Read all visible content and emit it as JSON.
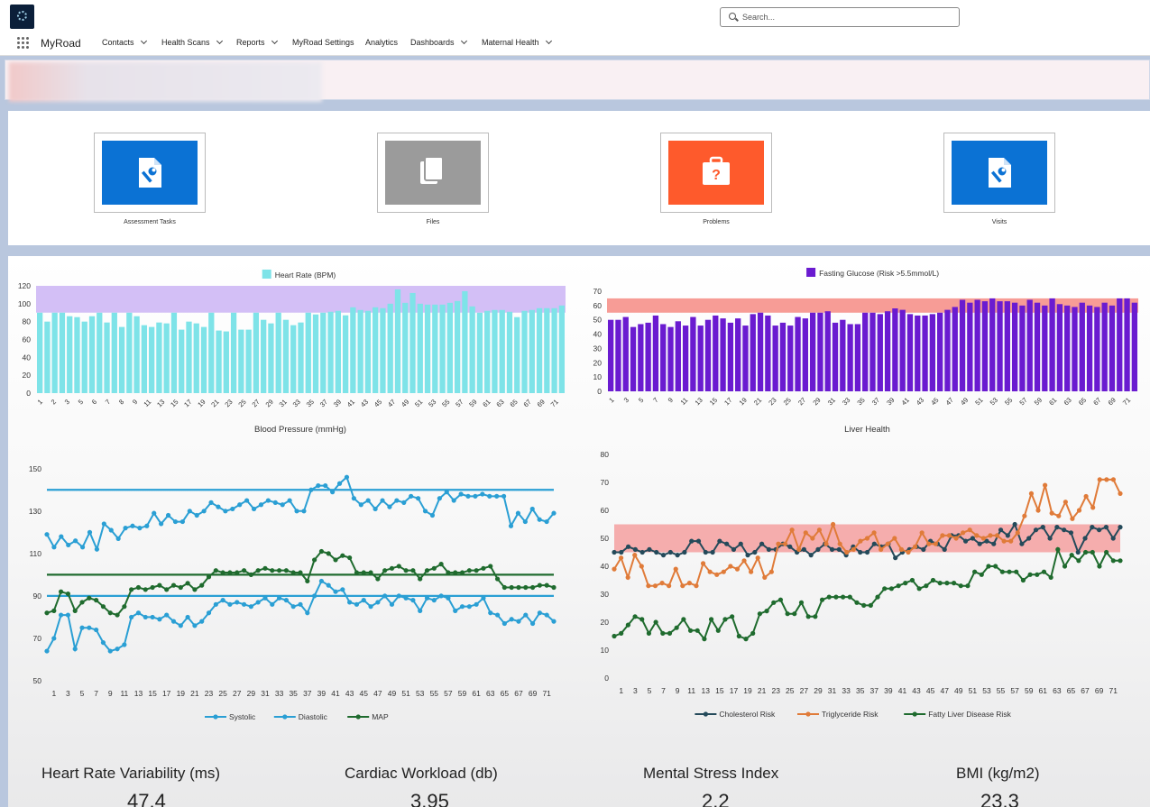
{
  "header": {
    "search_placeholder": "Search..."
  },
  "nav": {
    "app_name": "MyRoad",
    "items": [
      {
        "label": "Contacts",
        "has_menu": true
      },
      {
        "label": "Health Scans",
        "has_menu": true
      },
      {
        "label": "Reports",
        "has_menu": true
      },
      {
        "label": "MyRoad Settings",
        "has_menu": false
      },
      {
        "label": "Analytics",
        "has_menu": false
      },
      {
        "label": "Dashboards",
        "has_menu": true
      },
      {
        "label": "Maternal Health",
        "has_menu": true,
        "active": true
      }
    ]
  },
  "tiles": [
    {
      "label": "Assessment Tasks",
      "icon": "wrench-document-icon",
      "color": "#0b72d4"
    },
    {
      "label": "Files",
      "icon": "files-icon",
      "color": "#9b9b9b"
    },
    {
      "label": "Problems",
      "icon": "briefcase-question-icon",
      "color": "#fe5a2c"
    },
    {
      "label": "Visits",
      "icon": "wrench-document-icon",
      "color": "#0b72d4"
    }
  ],
  "chart_data": [
    {
      "type": "bar",
      "legend": "Heart Rate (BPM)",
      "color": "#7ee3e8",
      "band_color": "#d3bff6",
      "band": [
        90,
        120
      ],
      "ylim": [
        0,
        120
      ],
      "yticks": [
        0,
        20,
        40,
        60,
        80,
        100,
        120
      ],
      "x_tick_labels": [
        "1",
        "2",
        "3",
        "5",
        "6",
        "7",
        "8",
        "9",
        "11",
        "13",
        "15",
        "17",
        "19",
        "21",
        "23",
        "25",
        "27",
        "29",
        "31",
        "33",
        "35",
        "37",
        "39",
        "41",
        "43",
        "45",
        "47",
        "49",
        "51",
        "53",
        "55",
        "57",
        "59",
        "61",
        "63",
        "65",
        "67",
        "69",
        "71"
      ],
      "values": [
        90,
        80,
        90,
        90,
        86,
        85,
        80,
        86,
        90,
        79,
        90,
        74,
        90,
        86,
        76,
        74,
        79,
        78,
        90,
        71,
        80,
        78,
        74,
        90,
        70,
        69,
        90,
        71,
        71,
        90,
        82,
        78,
        90,
        82,
        76,
        79,
        90,
        88,
        90,
        91,
        92,
        87,
        96,
        93,
        92,
        96,
        95,
        100,
        116,
        101,
        112,
        100,
        99,
        99,
        99,
        101,
        103,
        114,
        97,
        90,
        92,
        93,
        93,
        91,
        85,
        92,
        93,
        95,
        95,
        95,
        98
      ]
    },
    {
      "type": "bar",
      "legend": "Fasting Glucose (Risk >5.5mmol/L)",
      "color": "#6a1bd0",
      "band_color": "#f79c96",
      "band": [
        55,
        65
      ],
      "ylim": [
        0,
        70
      ],
      "yticks": [
        0,
        10,
        20,
        30,
        40,
        50,
        60,
        70
      ],
      "x_tick_labels": [
        "1",
        "3",
        "5",
        "7",
        "9",
        "11",
        "13",
        "15",
        "17",
        "19",
        "21",
        "23",
        "25",
        "27",
        "29",
        "31",
        "33",
        "35",
        "37",
        "39",
        "41",
        "43",
        "45",
        "47",
        "49",
        "51",
        "53",
        "55",
        "57",
        "59",
        "61",
        "63",
        "65",
        "67",
        "69",
        "71"
      ],
      "values": [
        50,
        50,
        52,
        45,
        47,
        48,
        53,
        47,
        45,
        49,
        46,
        52,
        46,
        50,
        53,
        51,
        48,
        51,
        46,
        54,
        55,
        53,
        46,
        48,
        46,
        52,
        51,
        55,
        55,
        56,
        48,
        50,
        47,
        47,
        55,
        55,
        54,
        56,
        58,
        57,
        54,
        53,
        53,
        54,
        55,
        57,
        59,
        64,
        62,
        64,
        63,
        65,
        63,
        63,
        62,
        60,
        64,
        62,
        60,
        65,
        61,
        60,
        59,
        62,
        60,
        59,
        62,
        60,
        65,
        65,
        62
      ]
    },
    {
      "type": "line",
      "title": "Blood Pressure (mmHg)",
      "ylim": [
        50,
        155
      ],
      "yticks": [
        50,
        70,
        90,
        110,
        130,
        150
      ],
      "x_tick_labels": [
        "1",
        "3",
        "5",
        "7",
        "9",
        "11",
        "13",
        "15",
        "17",
        "19",
        "21",
        "23",
        "25",
        "27",
        "29",
        "31",
        "33",
        "35",
        "37",
        "39",
        "41",
        "43",
        "45",
        "47",
        "49",
        "51",
        "53",
        "55",
        "57",
        "59",
        "61",
        "63",
        "65",
        "67",
        "69",
        "71"
      ],
      "reference_lines": [
        {
          "value": 140,
          "color": "#2a9fd4"
        },
        {
          "value": 90,
          "color": "#2a9fd4"
        },
        {
          "value": 100,
          "color": "#1f6b2e"
        }
      ],
      "series": [
        {
          "name": "Systolic",
          "color": "#2a9fd4",
          "values": [
            119,
            113,
            118,
            114,
            116,
            113,
            120,
            112,
            124,
            121,
            117,
            122,
            123,
            122,
            123,
            129,
            124,
            128,
            125,
            125,
            130,
            128,
            130,
            134,
            132,
            130,
            131,
            133,
            135,
            131,
            133,
            135,
            134,
            133,
            135,
            130,
            130,
            140,
            142,
            142,
            139,
            143,
            146,
            136,
            133,
            135,
            131,
            135,
            132,
            135,
            134,
            137,
            136,
            130,
            128,
            136,
            139,
            135,
            138,
            137,
            137,
            138,
            137,
            137,
            137,
            123,
            129,
            125,
            131,
            126,
            125,
            129
          ]
        },
        {
          "name": "Diastolic",
          "color": "#2a9fd4",
          "values": [
            64,
            70,
            81,
            81,
            65,
            75,
            75,
            74,
            68,
            64,
            65,
            67,
            80,
            82,
            80,
            80,
            79,
            81,
            78,
            76,
            80,
            76,
            78,
            82,
            86,
            88,
            86,
            87,
            86,
            85,
            87,
            89,
            86,
            89,
            88,
            85,
            86,
            82,
            90,
            97,
            95,
            92,
            93,
            87,
            86,
            88,
            85,
            87,
            90,
            86,
            90,
            89,
            88,
            83,
            89,
            88,
            90,
            89,
            83,
            85,
            85,
            86,
            89,
            82,
            81,
            77,
            79,
            78,
            81,
            77,
            82,
            81,
            78
          ]
        },
        {
          "name": "MAP",
          "color": "#1f6b2e",
          "values": [
            82,
            83,
            92,
            91,
            83,
            87,
            89,
            88,
            85,
            82,
            81,
            85,
            93,
            94,
            93,
            94,
            95,
            93,
            95,
            94,
            96,
            93,
            95,
            99,
            102,
            101,
            101,
            101,
            102,
            100,
            102,
            103,
            102,
            102,
            102,
            101,
            101,
            97,
            107,
            111,
            110,
            107,
            109,
            108,
            101,
            101,
            101,
            98,
            102,
            103,
            104,
            102,
            102,
            98,
            102,
            103,
            105,
            101,
            101,
            101,
            102,
            102,
            103,
            104,
            98,
            94,
            94,
            94,
            94,
            94,
            95,
            95,
            94
          ]
        }
      ]
    },
    {
      "type": "line",
      "title": "Liver Health",
      "ylim": [
        0,
        80
      ],
      "yticks": [
        0,
        10,
        20,
        30,
        40,
        50,
        60,
        70,
        80
      ],
      "band_color": "#f5a0a0",
      "band": [
        45,
        55
      ],
      "x_tick_labels": [
        "1",
        "3",
        "5",
        "7",
        "9",
        "11",
        "13",
        "15",
        "17",
        "19",
        "21",
        "23",
        "25",
        "27",
        "29",
        "31",
        "33",
        "35",
        "37",
        "39",
        "41",
        "43",
        "45",
        "47",
        "49",
        "51",
        "53",
        "55",
        "57",
        "59",
        "61",
        "63",
        "65",
        "67",
        "69",
        "71"
      ],
      "series": [
        {
          "name": "Cholesterol Risk",
          "color": "#244a5a",
          "values": [
            45,
            45,
            47,
            46,
            45,
            46,
            45,
            44,
            45,
            44,
            45,
            49,
            49,
            45,
            45,
            49,
            48,
            46,
            48,
            44,
            45,
            48,
            46,
            46,
            48,
            47,
            45,
            46,
            44,
            46,
            48,
            46,
            46,
            44,
            47,
            45,
            45,
            48,
            47,
            48,
            43,
            45,
            46,
            47,
            46,
            49,
            48,
            46,
            51,
            51,
            49,
            50,
            48,
            49,
            48,
            53,
            51,
            55,
            48,
            50,
            53,
            54,
            50,
            54,
            53,
            52,
            45,
            50,
            54,
            53,
            54,
            50,
            54
          ]
        },
        {
          "name": "Triglyceride Risk",
          "color": "#e07b39",
          "values": [
            39,
            43,
            36,
            44,
            40,
            33,
            33,
            34,
            33,
            39,
            33,
            34,
            33,
            41,
            38,
            37,
            38,
            40,
            39,
            42,
            38,
            43,
            36,
            38,
            48,
            48,
            53,
            46,
            52,
            50,
            53,
            48,
            55,
            48,
            45,
            46,
            49,
            50,
            52,
            46,
            48,
            50,
            46,
            45,
            47,
            52,
            48,
            48,
            51,
            51,
            50,
            52,
            53,
            51,
            50,
            51,
            51,
            49,
            49,
            52,
            58,
            66,
            60,
            69,
            59,
            58,
            63,
            57,
            60,
            65,
            61,
            71,
            71,
            71,
            66
          ]
        },
        {
          "name": "Fatty Liver Disease Risk",
          "color": "#1f6b2e",
          "values": [
            15,
            16,
            19,
            22,
            21,
            16,
            20,
            16,
            16,
            18,
            21,
            17,
            17,
            14,
            21,
            17,
            21,
            22,
            15,
            14,
            16,
            23,
            24,
            27,
            28,
            23,
            23,
            27,
            22,
            22,
            28,
            29,
            29,
            29,
            29,
            27,
            26,
            26,
            29,
            32,
            32,
            33,
            34,
            35,
            32,
            33,
            35,
            34,
            34,
            34,
            33,
            33,
            38,
            37,
            40,
            40,
            38,
            38,
            38,
            35,
            37,
            37,
            38,
            36,
            46,
            40,
            44,
            42,
            45,
            45,
            40,
            45,
            42,
            42
          ]
        }
      ]
    }
  ],
  "metrics": [
    {
      "label": "Heart Rate Variability (ms)",
      "value": "47.4"
    },
    {
      "label": "Cardiac Workload (db)",
      "value": "3.95"
    },
    {
      "label": "Mental Stress Index",
      "value": "2.2"
    },
    {
      "label": "BMI (kg/m2)",
      "value": "23.3"
    }
  ]
}
